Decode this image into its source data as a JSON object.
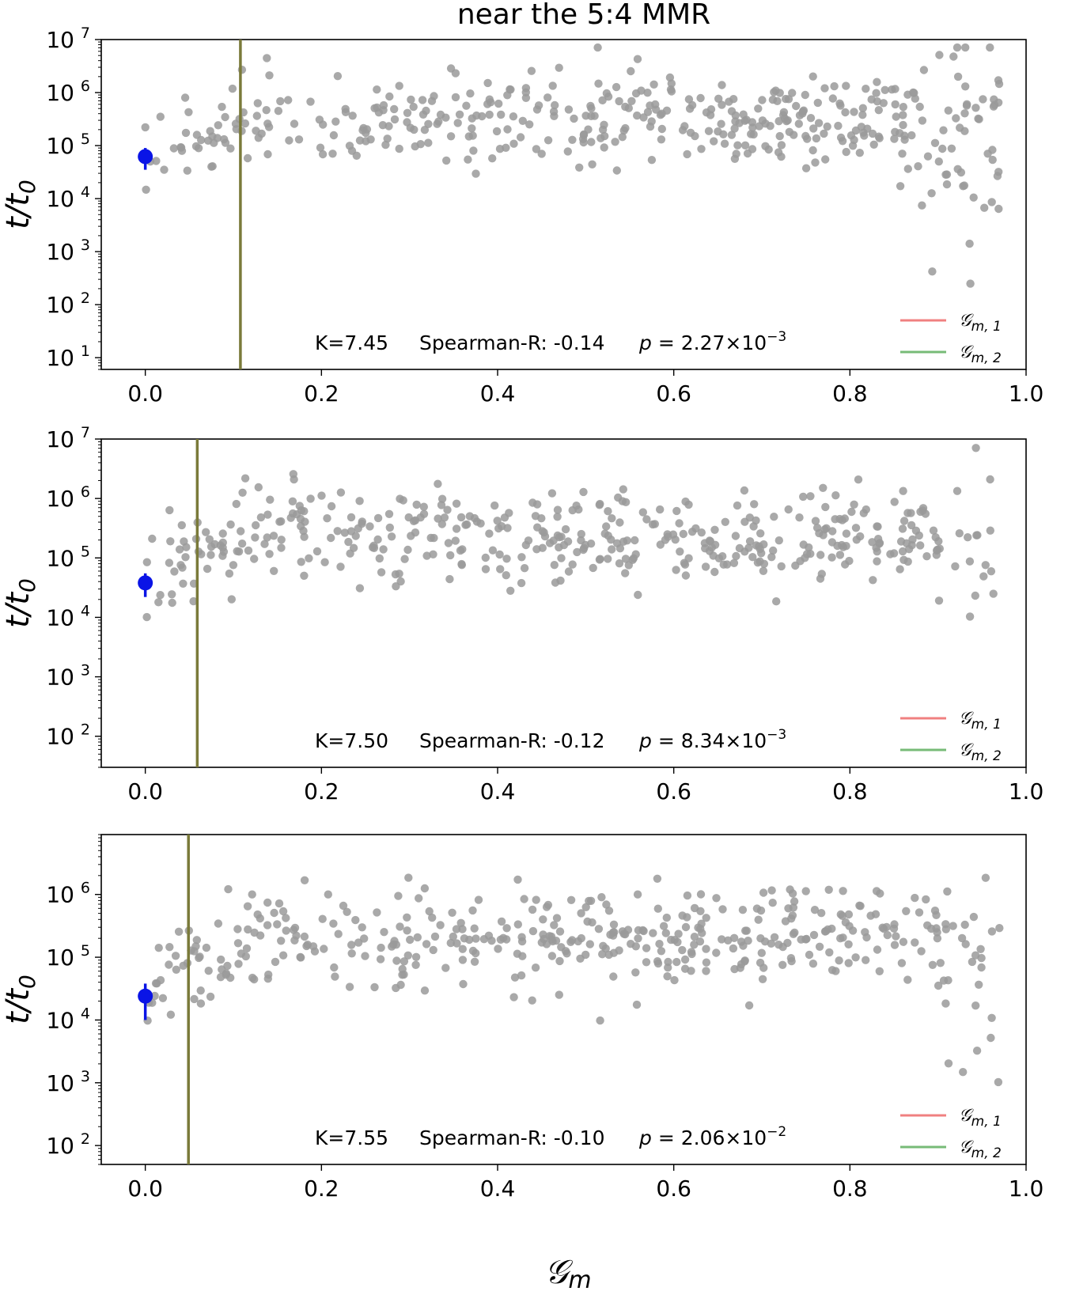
{
  "title": "near the 5:4 MMR",
  "xlabel": "𝒢",
  "xlabel_sub": "m",
  "colors": {
    "points": "#9a9a9a",
    "highlight": "#0a14e6",
    "vline": "#7a7a3a",
    "legend_red": "#f08080",
    "legend_green": "#77bb77"
  },
  "legend": [
    {
      "label": "𝒢",
      "sub": "m, 1"
    },
    {
      "label": "𝒢",
      "sub": "m, 2"
    }
  ],
  "chart_data": [
    {
      "type": "scatter",
      "yscale": "log",
      "xlim": [
        -0.05,
        1.0
      ],
      "ylim": [
        6,
        10000000
      ],
      "xticks": [
        0.0,
        0.2,
        0.4,
        0.6,
        0.8,
        1.0
      ],
      "xtick_labels": [
        "0.0",
        "0.2",
        "0.4",
        "0.6",
        "0.8",
        "1.0"
      ],
      "yticks": [
        10,
        100,
        1000,
        10000,
        100000,
        1000000,
        10000000
      ],
      "ytick_bases": [
        "10",
        "10",
        "10",
        "10",
        "10",
        "10",
        "10"
      ],
      "ytick_exps": [
        "1",
        "2",
        "3",
        "4",
        "5",
        "6",
        "7"
      ],
      "ylabel": "t/t",
      "ylabel_sub": "0",
      "vline_x": 0.108,
      "highlight": {
        "x": 0.0,
        "y": 62000,
        "ylow": 35000,
        "yhigh": 90000
      },
      "stats": {
        "k": "K=7.45",
        "spearman": "Spearman-R: -0.14",
        "p_label": "p",
        "p_value": " = 2.27×10",
        "p_exp": "−3"
      },
      "point_model": {
        "count": 430,
        "seed": 11,
        "xmax": 0.97,
        "peak": 300000,
        "spread": 0.55,
        "tail_start": 0.88
      }
    },
    {
      "type": "scatter",
      "yscale": "log",
      "xlim": [
        -0.05,
        1.0
      ],
      "ylim": [
        30,
        10000000
      ],
      "xticks": [
        0.0,
        0.2,
        0.4,
        0.6,
        0.8,
        1.0
      ],
      "xtick_labels": [
        "0.0",
        "0.2",
        "0.4",
        "0.6",
        "0.8",
        "1.0"
      ],
      "yticks": [
        100,
        1000,
        10000,
        100000,
        1000000,
        10000000
      ],
      "ytick_bases": [
        "10",
        "10",
        "10",
        "10",
        "10",
        "10"
      ],
      "ytick_exps": [
        "2",
        "3",
        "4",
        "5",
        "6",
        "7"
      ],
      "ylabel": "t/t",
      "ylabel_sub": "0",
      "vline_x": 0.059,
      "highlight": {
        "x": 0.0,
        "y": 38000,
        "ylow": 22000,
        "yhigh": 55000
      },
      "stats": {
        "k": "K=7.50",
        "spearman": "Spearman-R: -0.12",
        "p_label": "p",
        "p_value": " = 8.34×10",
        "p_exp": "−3"
      },
      "point_model": {
        "count": 430,
        "seed": 23,
        "xmax": 0.97,
        "peak": 250000,
        "spread": 0.5,
        "tail_start": 0.9
      }
    },
    {
      "type": "scatter",
      "yscale": "log",
      "xlim": [
        -0.05,
        1.0
      ],
      "ylim": [
        50,
        9000000
      ],
      "xticks": [
        0.0,
        0.2,
        0.4,
        0.6,
        0.8,
        1.0
      ],
      "xtick_labels": [
        "0.0",
        "0.2",
        "0.4",
        "0.6",
        "0.8",
        "1.0"
      ],
      "yticks": [
        100,
        1000,
        10000,
        100000,
        1000000
      ],
      "ytick_bases": [
        "10",
        "10",
        "10",
        "10",
        "10"
      ],
      "ytick_exps": [
        "2",
        "3",
        "4",
        "5",
        "6"
      ],
      "ylabel": "t/t",
      "ylabel_sub": "0",
      "vline_x": 0.049,
      "highlight": {
        "x": 0.0,
        "y": 24000,
        "ylow": 10000,
        "yhigh": 38000
      },
      "stats": {
        "k": "K=7.55",
        "spearman": "Spearman-R: -0.10",
        "p_label": "p",
        "p_value": " = 2.06×10",
        "p_exp": "−2"
      },
      "point_model": {
        "count": 430,
        "seed": 37,
        "xmax": 0.97,
        "peak": 220000,
        "spread": 0.48,
        "tail_start": 0.9
      }
    }
  ]
}
